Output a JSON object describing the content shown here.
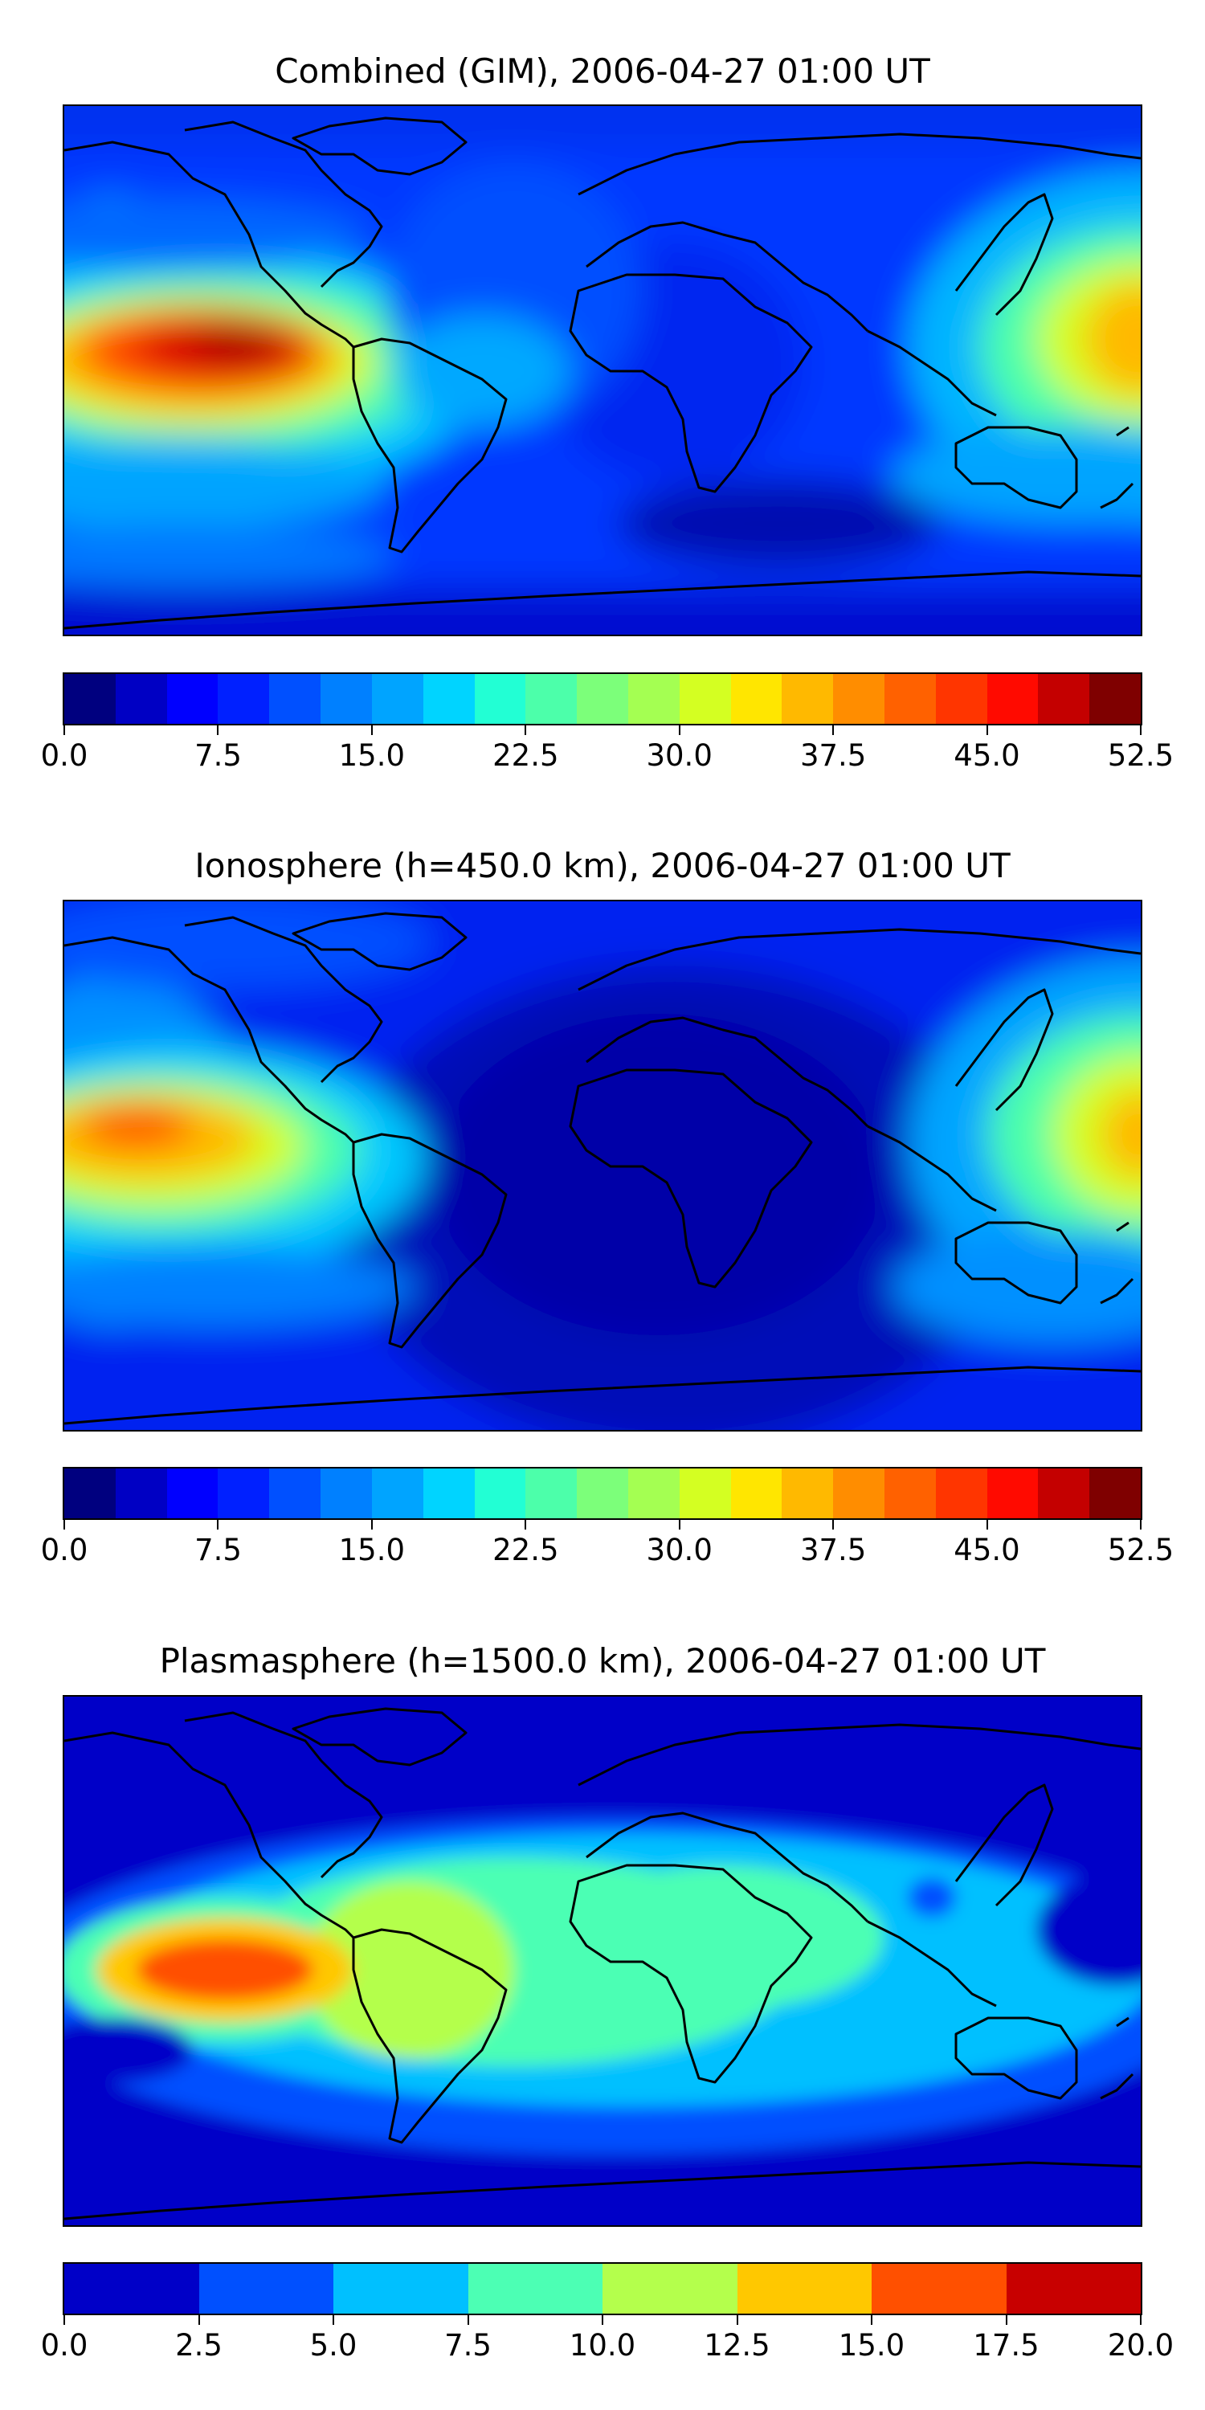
{
  "panels": [
    {
      "title": "Combined (GIM), 2006-04-27 01:00 UT",
      "colorbar": {
        "colors": [
          "#00007f",
          "#0000c4",
          "#0000ff",
          "#0020ff",
          "#0050ff",
          "#0080ff",
          "#00a4ff",
          "#00d4ff",
          "#22ffd4",
          "#4cffaa",
          "#7cff7a",
          "#a4ff52",
          "#d4ff22",
          "#ffe600",
          "#ffb900",
          "#ff8d00",
          "#ff6100",
          "#ff3500",
          "#ff0a00",
          "#c40000",
          "#7f0000"
        ],
        "ticks": [
          "0.0",
          "7.5",
          "15.0",
          "22.5",
          "30.0",
          "37.5",
          "45.0",
          "52.5"
        ],
        "tick_fracs": [
          0.0,
          0.1429,
          0.2857,
          0.4286,
          0.5714,
          0.7143,
          0.8571,
          1.0
        ]
      }
    },
    {
      "title": "Ionosphere  (h=450.0 km), 2006-04-27 01:00 UT",
      "colorbar": {
        "colors": [
          "#00007f",
          "#0000c4",
          "#0000ff",
          "#0020ff",
          "#0050ff",
          "#0080ff",
          "#00a4ff",
          "#00d4ff",
          "#22ffd4",
          "#4cffaa",
          "#7cff7a",
          "#a4ff52",
          "#d4ff22",
          "#ffe600",
          "#ffb900",
          "#ff8d00",
          "#ff6100",
          "#ff3500",
          "#ff0a00",
          "#c40000",
          "#7f0000"
        ],
        "ticks": [
          "0.0",
          "7.5",
          "15.0",
          "22.5",
          "30.0",
          "37.5",
          "45.0",
          "52.5"
        ],
        "tick_fracs": [
          0.0,
          0.1429,
          0.2857,
          0.4286,
          0.5714,
          0.7143,
          0.8571,
          1.0
        ]
      }
    },
    {
      "title": "Plasmasphere (h=1500.0 km), 2006-04-27 01:00 UT",
      "colorbar": {
        "colors": [
          "#0000c8",
          "#0050ff",
          "#00c0ff",
          "#4cffb4",
          "#b4ff4c",
          "#ffc800",
          "#ff5000",
          "#c80000"
        ],
        "ticks": [
          "0.0",
          "2.5",
          "5.0",
          "7.5",
          "10.0",
          "12.5",
          "15.0",
          "17.5",
          "20.0"
        ],
        "tick_fracs": [
          0.0,
          0.125,
          0.25,
          0.375,
          0.5,
          0.625,
          0.75,
          0.875,
          1.0
        ]
      }
    }
  ],
  "chart_data": [
    {
      "type": "heatmap",
      "title": "Combined (GIM), 2006-04-27 01:00 UT",
      "colorbar_range": [
        0,
        55
      ],
      "colorbar_ticks": [
        0.0,
        7.5,
        15.0,
        22.5,
        30.0,
        37.5,
        45.0,
        52.5
      ],
      "features": [
        {
          "region": "central-pacific-equatorial",
          "max_value": 54
        },
        {
          "region": "western-pacific-equatorial",
          "max_value": 36
        },
        {
          "region": "south-atlantic",
          "max_value": 8
        },
        {
          "region": "polar",
          "max_value": 8
        }
      ]
    },
    {
      "type": "heatmap",
      "title": "Ionosphere  (h=450.0 km), 2006-04-27 01:00 UT",
      "colorbar_range": [
        0,
        55
      ],
      "colorbar_ticks": [
        0.0,
        7.5,
        15.0,
        22.5,
        30.0,
        37.5,
        45.0,
        52.5
      ],
      "features": [
        {
          "region": "central-pacific-equatorial",
          "max_value": 42
        },
        {
          "region": "western-pacific-equatorial",
          "max_value": 36
        },
        {
          "region": "atlantic-africa",
          "max_value": 5
        }
      ]
    },
    {
      "type": "heatmap",
      "title": "Plasmasphere (h=1500.0 km), 2006-04-27 01:00 UT",
      "colorbar_range": [
        0,
        20
      ],
      "colorbar_ticks": [
        0.0,
        2.5,
        5.0,
        7.5,
        10.0,
        12.5,
        15.0,
        17.5,
        20.0
      ],
      "features": [
        {
          "region": "central-pacific-equatorial",
          "max_value": 16
        },
        {
          "region": "south-america",
          "max_value": 12
        },
        {
          "region": "africa-equatorial-belt",
          "max_value": 9
        },
        {
          "region": "polar",
          "max_value": 2.5
        }
      ]
    }
  ]
}
